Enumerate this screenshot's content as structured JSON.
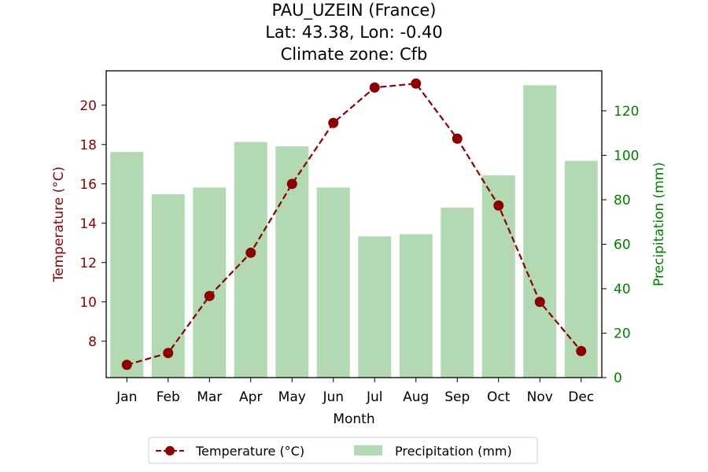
{
  "chart_data": {
    "type": "bar",
    "title_lines": [
      "PAU_UZEIN (France)",
      "Lat: 43.38, Lon: -0.40",
      "Climate zone: Cfb"
    ],
    "xlabel": "Month",
    "ylabel_left": "Temperature (°C)",
    "ylabel_right": "Precipitation (mm)",
    "categories": [
      "Jan",
      "Feb",
      "Mar",
      "Apr",
      "May",
      "Jun",
      "Jul",
      "Aug",
      "Sep",
      "Oct",
      "Nov",
      "Dec"
    ],
    "series": [
      {
        "name": "Temperature (°C)",
        "type": "line",
        "axis": "left",
        "color": "#8b0000",
        "values": [
          6.8,
          7.4,
          10.3,
          12.5,
          16.0,
          19.1,
          20.9,
          21.1,
          18.3,
          14.9,
          10.0,
          7.5
        ]
      },
      {
        "name": "Precipitation (mm)",
        "type": "bar",
        "axis": "right",
        "color": "#b2d9b2",
        "values": [
          101.5,
          82.5,
          85.5,
          106,
          104,
          85.5,
          63.5,
          64.5,
          76.5,
          91,
          131.5,
          97.5
        ]
      }
    ],
    "ylim_left": [
      6.15,
      21.75
    ],
    "ylim_right": [
      0,
      138
    ],
    "yticks_left": [
      8,
      10,
      12,
      14,
      16,
      18,
      20
    ],
    "yticks_right": [
      0,
      20,
      40,
      60,
      80,
      100,
      120
    ],
    "left_axis_color": "#8b0000",
    "right_axis_color": "#008000",
    "grid": false,
    "legend_position": "bottom-center"
  }
}
